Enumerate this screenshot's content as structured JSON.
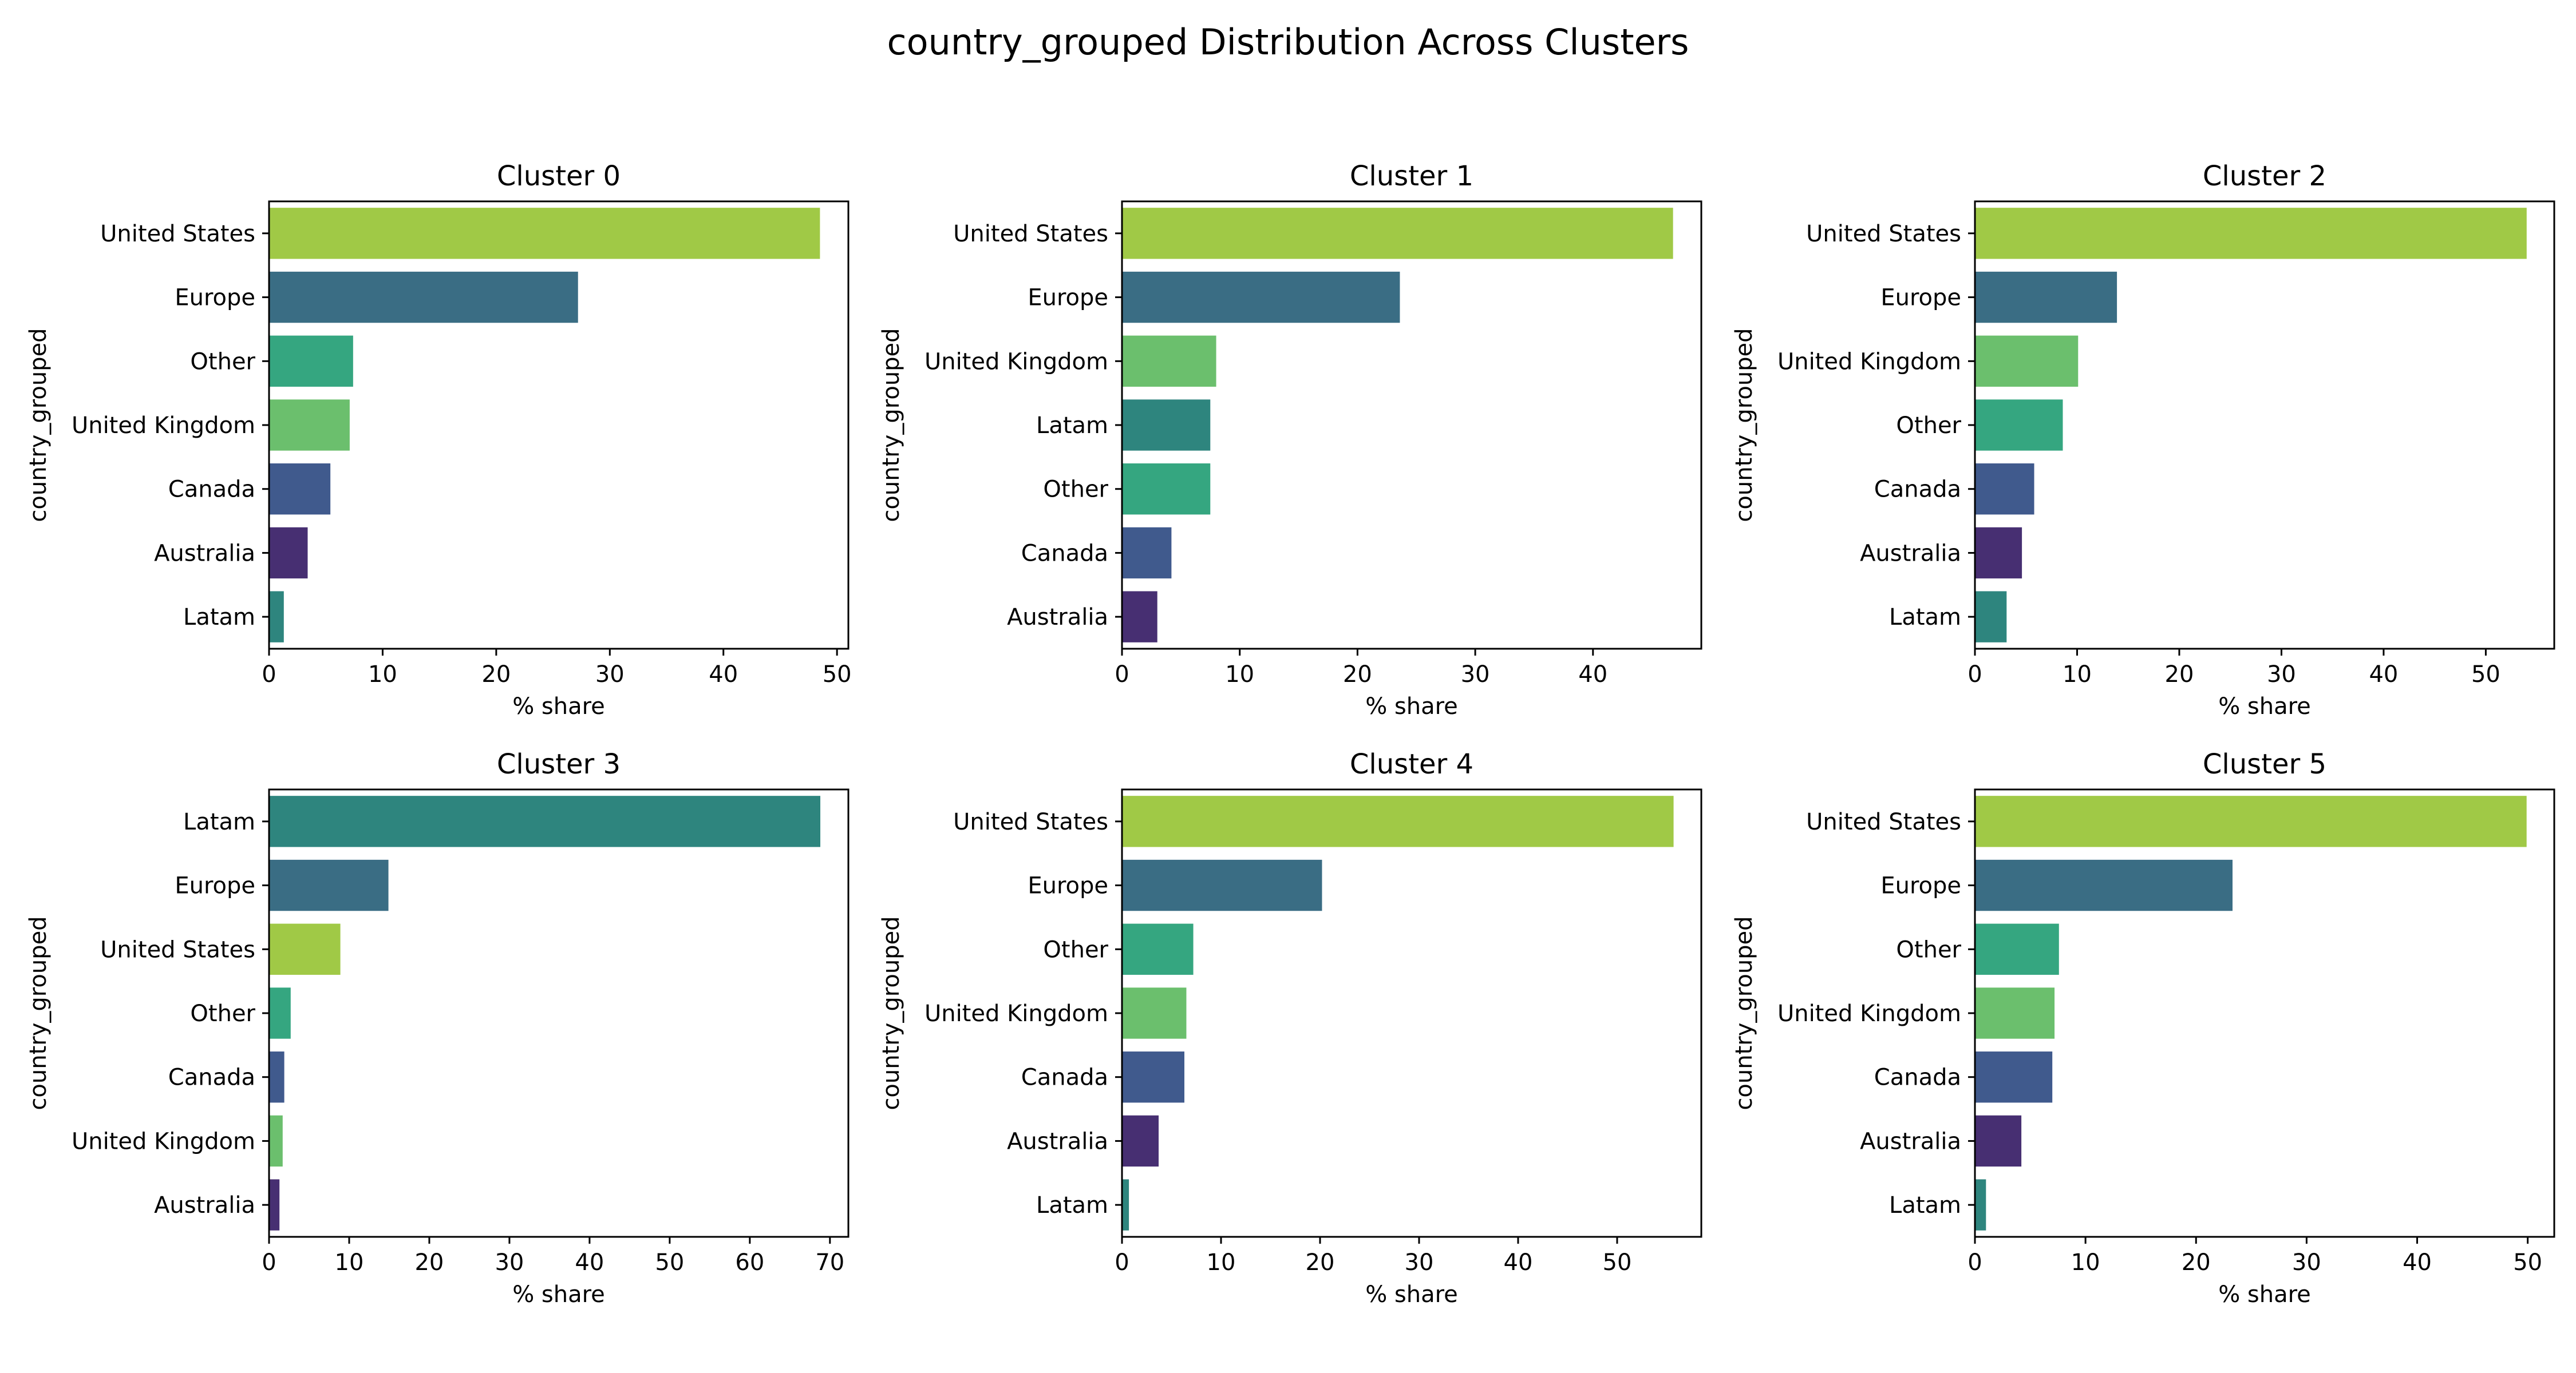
{
  "figure": {
    "title": "country_grouped Distribution Across Clusters"
  },
  "category_colors": {
    "United States": "#A0C946",
    "Europe": "#3A6D84",
    "Other": "#35A680",
    "United Kingdom": "#6BBF6D",
    "Canada": "#405A8D",
    "Australia": "#472F72",
    "Latam": "#2E857E"
  },
  "chart_data": [
    {
      "type": "bar",
      "orientation": "horizontal",
      "title": "Cluster 0",
      "xlabel": "% share",
      "ylabel": "country_grouped",
      "categories": [
        "United States",
        "Europe",
        "Other",
        "United Kingdom",
        "Canada",
        "Australia",
        "Latam"
      ],
      "values": [
        48.5,
        27.2,
        7.4,
        7.1,
        5.4,
        3.4,
        1.3
      ],
      "xlim": [
        0,
        51
      ],
      "xticks": [
        0,
        10,
        20,
        30,
        40,
        50
      ]
    },
    {
      "type": "bar",
      "orientation": "horizontal",
      "title": "Cluster 1",
      "xlabel": "% share",
      "ylabel": "country_grouped",
      "categories": [
        "United States",
        "Europe",
        "United Kingdom",
        "Latam",
        "Other",
        "Canada",
        "Australia"
      ],
      "values": [
        46.8,
        23.6,
        8.0,
        7.5,
        7.5,
        4.2,
        3.0
      ],
      "xlim": [
        0,
        49.2
      ],
      "xticks": [
        0,
        10,
        20,
        30,
        40
      ]
    },
    {
      "type": "bar",
      "orientation": "horizontal",
      "title": "Cluster 2",
      "xlabel": "% share",
      "ylabel": "country_grouped",
      "categories": [
        "United States",
        "Europe",
        "United Kingdom",
        "Other",
        "Canada",
        "Australia",
        "Latam"
      ],
      "values": [
        54.0,
        13.9,
        10.1,
        8.6,
        5.8,
        4.6,
        3.1
      ],
      "xlim": [
        0,
        56.7
      ],
      "xticks": [
        0,
        10,
        20,
        30,
        40,
        50
      ]
    },
    {
      "type": "bar",
      "orientation": "horizontal",
      "title": "Cluster 3",
      "xlabel": "% share",
      "ylabel": "country_grouped",
      "categories": [
        "Latam",
        "Europe",
        "United States",
        "Other",
        "Canada",
        "United Kingdom",
        "Australia"
      ],
      "values": [
        68.8,
        14.9,
        8.9,
        2.7,
        1.9,
        1.7,
        1.3
      ],
      "xlim": [
        0,
        72.3
      ],
      "xticks": [
        0,
        10,
        20,
        30,
        40,
        50,
        60,
        70
      ]
    },
    {
      "type": "bar",
      "orientation": "horizontal",
      "title": "Cluster 4",
      "xlabel": "% share",
      "ylabel": "country_grouped",
      "categories": [
        "United States",
        "Europe",
        "Other",
        "United Kingdom",
        "Canada",
        "Australia",
        "Latam"
      ],
      "values": [
        55.7,
        20.2,
        7.2,
        6.5,
        6.3,
        3.7,
        0.7
      ],
      "xlim": [
        0,
        58.5
      ],
      "xticks": [
        0,
        10,
        20,
        30,
        40,
        50
      ]
    },
    {
      "type": "bar",
      "orientation": "horizontal",
      "title": "Cluster 5",
      "xlabel": "% share",
      "ylabel": "country_grouped",
      "categories": [
        "United States",
        "Europe",
        "Other",
        "United Kingdom",
        "Canada",
        "Australia",
        "Latam"
      ],
      "values": [
        49.9,
        23.3,
        7.6,
        7.2,
        7.0,
        4.2,
        1.0
      ],
      "xlim": [
        0,
        52.4
      ],
      "xticks": [
        0,
        10,
        20,
        30,
        40,
        50
      ]
    }
  ]
}
